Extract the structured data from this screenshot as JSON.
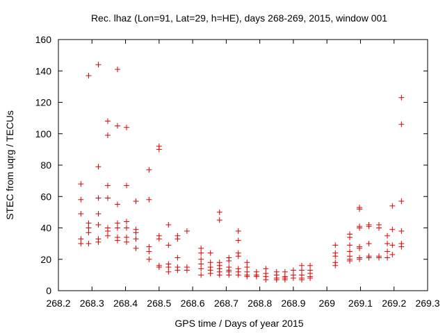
{
  "chart_data": {
    "type": "scatter",
    "title": "Rec. lhaz (Lon=91, Lat=29, h=HE), days 268-269, 2015, window 001",
    "xlabel": "GPS time / Days of year 2015",
    "ylabel": "STEC from uqrg / TECUs",
    "xlim": [
      268.2,
      269.3
    ],
    "ylim": [
      0,
      160
    ],
    "xticks": [
      "268.2",
      "268.3",
      "268.4",
      "268.5",
      "268.6",
      "268.7",
      "268.8",
      "268.9",
      "269",
      "269.1",
      "269.2",
      "269.3"
    ],
    "xtick_values": [
      268.2,
      268.3,
      268.4,
      268.5,
      268.6,
      268.7,
      268.8,
      268.9,
      269.0,
      269.1,
      269.2,
      269.3
    ],
    "yticks": [
      "0",
      "20",
      "40",
      "60",
      "80",
      "100",
      "120",
      "140",
      "160"
    ],
    "ytick_values": [
      0,
      20,
      40,
      60,
      80,
      100,
      120,
      140,
      160
    ],
    "grid": false,
    "marker": "+",
    "color": "#dd0000",
    "points": [
      [
        268.267,
        68
      ],
      [
        268.267,
        58
      ],
      [
        268.267,
        49
      ],
      [
        268.267,
        33
      ],
      [
        268.267,
        30
      ],
      [
        268.29,
        137
      ],
      [
        268.29,
        43
      ],
      [
        268.29,
        40
      ],
      [
        268.29,
        37
      ],
      [
        268.29,
        30
      ],
      [
        268.319,
        144
      ],
      [
        268.319,
        79
      ],
      [
        268.319,
        59
      ],
      [
        268.319,
        49
      ],
      [
        268.319,
        42
      ],
      [
        268.319,
        33
      ],
      [
        268.319,
        31
      ],
      [
        268.347,
        108
      ],
      [
        268.347,
        99
      ],
      [
        268.347,
        67
      ],
      [
        268.347,
        59
      ],
      [
        268.347,
        40
      ],
      [
        268.347,
        38
      ],
      [
        268.347,
        35
      ],
      [
        268.376,
        141
      ],
      [
        268.376,
        105
      ],
      [
        268.376,
        55
      ],
      [
        268.376,
        43
      ],
      [
        268.376,
        40
      ],
      [
        268.376,
        34
      ],
      [
        268.376,
        32
      ],
      [
        268.403,
        104
      ],
      [
        268.403,
        67
      ],
      [
        268.403,
        44
      ],
      [
        268.403,
        40
      ],
      [
        268.403,
        34
      ],
      [
        268.403,
        31
      ],
      [
        268.431,
        57
      ],
      [
        268.431,
        39
      ],
      [
        268.431,
        37
      ],
      [
        268.431,
        33
      ],
      [
        268.431,
        27
      ],
      [
        268.47,
        77
      ],
      [
        268.47,
        58
      ],
      [
        268.47,
        28
      ],
      [
        268.47,
        25
      ],
      [
        268.47,
        20
      ],
      [
        268.5,
        92
      ],
      [
        268.5,
        90
      ],
      [
        268.5,
        35
      ],
      [
        268.5,
        33
      ],
      [
        268.5,
        16
      ],
      [
        268.5,
        15
      ],
      [
        268.528,
        42
      ],
      [
        268.528,
        29
      ],
      [
        268.528,
        17
      ],
      [
        268.528,
        15
      ],
      [
        268.528,
        12
      ],
      [
        268.555,
        35
      ],
      [
        268.555,
        33
      ],
      [
        268.555,
        21
      ],
      [
        268.555,
        15
      ],
      [
        268.555,
        13
      ],
      [
        268.583,
        38
      ],
      [
        268.583,
        15
      ],
      [
        268.583,
        13
      ],
      [
        268.625,
        27
      ],
      [
        268.625,
        24
      ],
      [
        268.625,
        20
      ],
      [
        268.625,
        17
      ],
      [
        268.625,
        14
      ],
      [
        268.625,
        10
      ],
      [
        268.653,
        24
      ],
      [
        268.653,
        18
      ],
      [
        268.653,
        15
      ],
      [
        268.653,
        13
      ],
      [
        268.653,
        11
      ],
      [
        268.68,
        50
      ],
      [
        268.68,
        45
      ],
      [
        268.68,
        18
      ],
      [
        268.68,
        16
      ],
      [
        268.68,
        14
      ],
      [
        268.68,
        12
      ],
      [
        268.68,
        10
      ],
      [
        268.708,
        21
      ],
      [
        268.708,
        19
      ],
      [
        268.708,
        15
      ],
      [
        268.708,
        13
      ],
      [
        268.708,
        12
      ],
      [
        268.708,
        10
      ],
      [
        268.736,
        38
      ],
      [
        268.736,
        32
      ],
      [
        268.736,
        24
      ],
      [
        268.736,
        22
      ],
      [
        268.736,
        14
      ],
      [
        268.736,
        12
      ],
      [
        268.736,
        10
      ],
      [
        268.762,
        18
      ],
      [
        268.762,
        15
      ],
      [
        268.762,
        12
      ],
      [
        268.762,
        10
      ],
      [
        268.762,
        9
      ],
      [
        268.79,
        12
      ],
      [
        268.79,
        10
      ],
      [
        268.79,
        9
      ],
      [
        268.818,
        14
      ],
      [
        268.818,
        11
      ],
      [
        268.818,
        9
      ],
      [
        268.818,
        7
      ],
      [
        268.85,
        12
      ],
      [
        268.85,
        10
      ],
      [
        268.85,
        8
      ],
      [
        268.85,
        7
      ],
      [
        268.875,
        12
      ],
      [
        268.875,
        9
      ],
      [
        268.875,
        8
      ],
      [
        268.875,
        7
      ],
      [
        268.9,
        13
      ],
      [
        268.9,
        10
      ],
      [
        268.9,
        8
      ],
      [
        268.925,
        16
      ],
      [
        268.925,
        13
      ],
      [
        268.925,
        10
      ],
      [
        268.925,
        8
      ],
      [
        268.925,
        7
      ],
      [
        268.95,
        16
      ],
      [
        268.95,
        13
      ],
      [
        268.95,
        11
      ],
      [
        268.95,
        9
      ],
      [
        268.95,
        8
      ],
      [
        269.025,
        29
      ],
      [
        269.025,
        24
      ],
      [
        269.025,
        22
      ],
      [
        269.025,
        18
      ],
      [
        269.025,
        16
      ],
      [
        269.068,
        36
      ],
      [
        269.068,
        34
      ],
      [
        269.068,
        29
      ],
      [
        269.068,
        25
      ],
      [
        269.068,
        22
      ],
      [
        269.068,
        20
      ],
      [
        269.068,
        19
      ],
      [
        269.097,
        53
      ],
      [
        269.097,
        52
      ],
      [
        269.097,
        41
      ],
      [
        269.097,
        40
      ],
      [
        269.097,
        28
      ],
      [
        269.097,
        27
      ],
      [
        269.097,
        21
      ],
      [
        269.097,
        20
      ],
      [
        269.125,
        42
      ],
      [
        269.125,
        41
      ],
      [
        269.125,
        30
      ],
      [
        269.125,
        22
      ],
      [
        269.125,
        21
      ],
      [
        269.155,
        42
      ],
      [
        269.155,
        40
      ],
      [
        269.155,
        22
      ],
      [
        269.155,
        21
      ],
      [
        269.18,
        35
      ],
      [
        269.18,
        30
      ],
      [
        269.18,
        25
      ],
      [
        269.18,
        21
      ],
      [
        269.195,
        54
      ],
      [
        269.195,
        39
      ],
      [
        269.195,
        29
      ],
      [
        269.195,
        23
      ],
      [
        269.222,
        123
      ],
      [
        269.222,
        106
      ],
      [
        269.222,
        57
      ],
      [
        269.222,
        38
      ],
      [
        269.222,
        30
      ],
      [
        269.222,
        28
      ]
    ]
  }
}
